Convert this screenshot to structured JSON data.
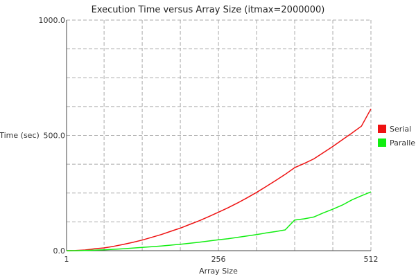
{
  "chart_data": {
    "type": "line",
    "title": "Execution Time versus Array Size (itmax=2000000)",
    "xlabel": "Array Size",
    "ylabel": "Time (sec)",
    "xlim": [
      1,
      512
    ],
    "ylim": [
      0,
      1000
    ],
    "x_ticks": [
      {
        "value": 1,
        "label": "1"
      },
      {
        "value": 256,
        "label": "256"
      },
      {
        "value": 512,
        "label": "512"
      }
    ],
    "y_ticks": [
      {
        "value": 0,
        "label": "0.0"
      },
      {
        "value": 500,
        "label": "500.0"
      },
      {
        "value": 1000,
        "label": "1000.0"
      }
    ],
    "x_grid": [
      1,
      64,
      128,
      192,
      256,
      320,
      384,
      448,
      512
    ],
    "y_grid": [
      0,
      125,
      250,
      375,
      500,
      625,
      750,
      875,
      1000
    ],
    "grid": true,
    "legend_position": "right",
    "series": [
      {
        "name": "Serial",
        "color": "#ee1111",
        "x": [
          1,
          16,
          32,
          48,
          64,
          80,
          96,
          112,
          128,
          144,
          160,
          176,
          192,
          208,
          224,
          240,
          256,
          272,
          288,
          304,
          320,
          336,
          352,
          368,
          384,
          400,
          416,
          432,
          448,
          464,
          480,
          496,
          512
        ],
        "y": [
          0,
          1,
          3,
          8,
          12,
          19,
          27,
          36,
          46,
          58,
          70,
          84,
          98,
          114,
          130,
          148,
          167,
          186,
          207,
          229,
          253,
          278,
          304,
          331,
          360,
          378,
          398,
          425,
          452,
          481,
          510,
          540,
          615
        ]
      },
      {
        "name": "Parallel",
        "color": "#11ee11",
        "x": [
          1,
          16,
          32,
          48,
          64,
          80,
          96,
          112,
          128,
          144,
          160,
          176,
          192,
          208,
          224,
          240,
          256,
          272,
          288,
          304,
          320,
          336,
          352,
          368,
          384,
          400,
          416,
          432,
          448,
          464,
          480,
          496,
          512
        ],
        "y": [
          0,
          0,
          1,
          2,
          4,
          6,
          8,
          11,
          14,
          17,
          20,
          24,
          28,
          32,
          37,
          42,
          47,
          52,
          58,
          64,
          70,
          77,
          83,
          90,
          133,
          138,
          146,
          164,
          180,
          198,
          220,
          238,
          255
        ]
      }
    ]
  }
}
